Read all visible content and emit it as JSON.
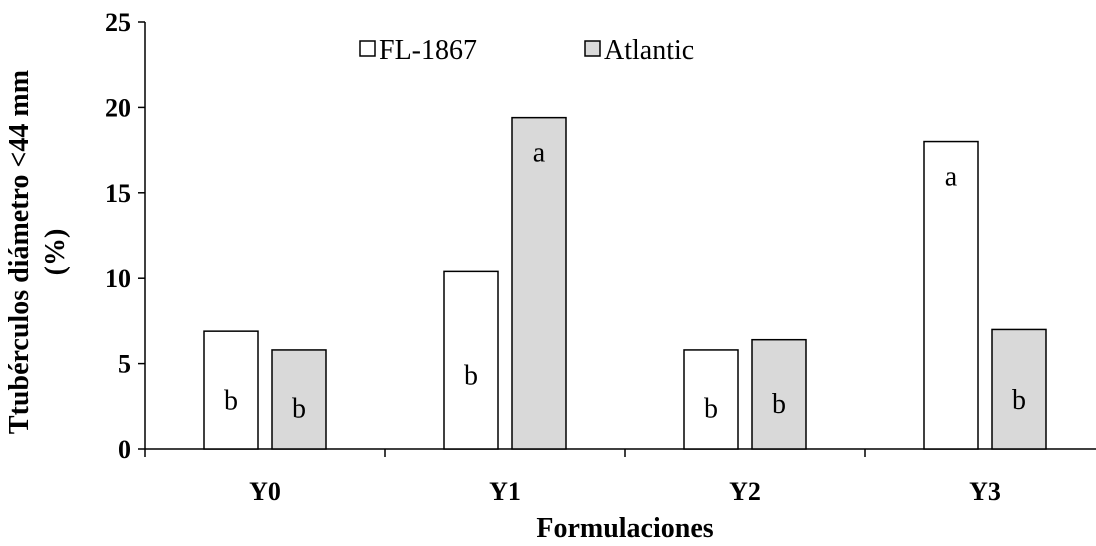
{
  "chart_data": {
    "type": "bar",
    "categories": [
      "Y0",
      "Y1",
      "Y2",
      "Y3"
    ],
    "series": [
      {
        "name": "FL-1867",
        "values": [
          6.9,
          10.4,
          5.8,
          18.0
        ],
        "letters": [
          "b",
          "b",
          "b",
          "a"
        ],
        "color": "#ffffff"
      },
      {
        "name": "Atlantic",
        "values": [
          5.8,
          19.4,
          6.4,
          7.0
        ],
        "letters": [
          "b",
          "a",
          "b",
          "b"
        ],
        "color": "#d9d9d9"
      }
    ],
    "xlabel": "Formulaciones",
    "ylabel_line1": "Ttubérculos diámetro <44 mm",
    "ylabel_line2": "(%)",
    "ylim": [
      0,
      25
    ],
    "yticks": [
      0,
      5,
      10,
      15,
      20,
      25
    ],
    "grid": false,
    "legend_position": "top-center"
  }
}
